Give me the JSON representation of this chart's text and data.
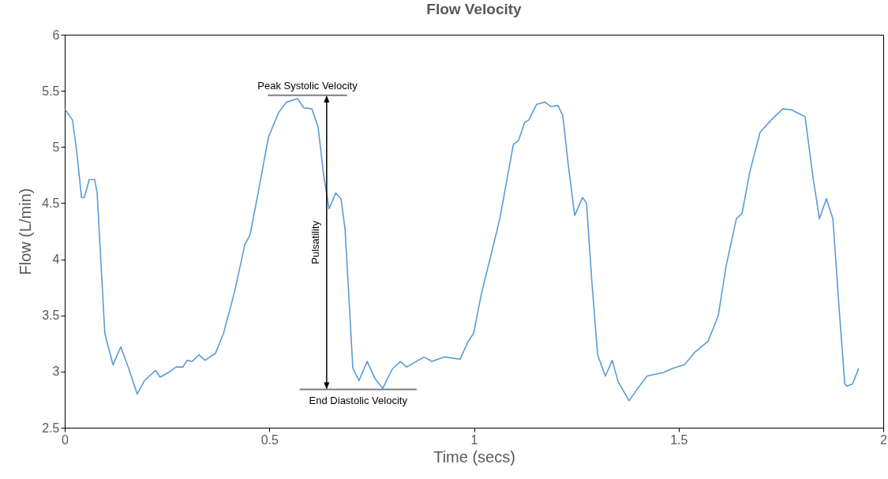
{
  "chart_data": {
    "type": "line",
    "title": "Flow Velocity",
    "xlabel": "Time (secs)",
    "ylabel": "Flow (L/min)",
    "xlim": [
      0,
      2
    ],
    "xticks": [
      0,
      0.5,
      1,
      1.5,
      2
    ],
    "ylim": [
      2.5,
      6
    ],
    "yticks": [
      2.5,
      3,
      3.5,
      4,
      4.5,
      5,
      5.5,
      6
    ],
    "grid": false,
    "marker": "none",
    "line_style": "solid",
    "x": [
      0,
      0.019,
      0.029,
      0.041,
      0.048,
      0.06,
      0.073,
      0.079,
      0.098,
      0.118,
      0.137,
      0.156,
      0.177,
      0.195,
      0.222,
      0.233,
      0.253,
      0.272,
      0.289,
      0.299,
      0.311,
      0.328,
      0.343,
      0.363,
      0.368,
      0.388,
      0.415,
      0.44,
      0.453,
      0.473,
      0.498,
      0.523,
      0.542,
      0.569,
      0.584,
      0.604,
      0.619,
      0.633,
      0.646,
      0.662,
      0.675,
      0.685,
      0.704,
      0.719,
      0.739,
      0.758,
      0.777,
      0.8,
      0.82,
      0.835,
      0.878,
      0.897,
      0.928,
      0.966,
      0.986,
      0.999,
      1.018,
      1.043,
      1.063,
      1.076,
      1.096,
      1.109,
      1.124,
      1.134,
      1.153,
      1.173,
      1.188,
      1.205,
      1.217,
      1.23,
      1.246,
      1.265,
      1.275,
      1.288,
      1.302,
      1.321,
      1.338,
      1.352,
      1.379,
      1.398,
      1.423,
      1.462,
      1.487,
      1.514,
      1.539,
      1.572,
      1.597,
      1.616,
      1.641,
      1.655,
      1.674,
      1.699,
      1.726,
      1.755,
      1.776,
      1.809,
      1.828,
      1.844,
      1.861,
      1.877,
      1.892,
      1.906,
      1.911,
      1.925,
      1.94
    ],
    "series": [
      {
        "color": "#5b9bd5",
        "values": [
          5.34,
          5.24,
          4.97,
          4.55,
          4.55,
          4.71,
          4.71,
          4.6,
          3.34,
          3.06,
          3.22,
          3.03,
          2.8,
          2.92,
          3.01,
          2.95,
          2.99,
          3.04,
          3.04,
          3.1,
          3.09,
          3.15,
          3.1,
          3.15,
          3.16,
          3.34,
          3.71,
          4.13,
          4.22,
          4.6,
          5.09,
          5.31,
          5.4,
          5.43,
          5.35,
          5.34,
          5.18,
          4.74,
          4.45,
          4.59,
          4.54,
          4.27,
          3.03,
          2.92,
          3.09,
          2.94,
          2.85,
          3.02,
          3.09,
          3.04,
          3.13,
          3.09,
          3.13,
          3.11,
          3.27,
          3.34,
          3.69,
          4.06,
          4.36,
          4.62,
          5.02,
          5.06,
          5.22,
          5.24,
          5.38,
          5.4,
          5.36,
          5.37,
          5.28,
          4.85,
          4.39,
          4.55,
          4.5,
          3.8,
          3.15,
          2.96,
          3.1,
          2.91,
          2.74,
          2.84,
          2.96,
          2.99,
          3.03,
          3.06,
          3.17,
          3.27,
          3.5,
          3.94,
          4.36,
          4.41,
          4.78,
          5.13,
          5.24,
          5.34,
          5.33,
          5.27,
          4.74,
          4.36,
          4.54,
          4.36,
          3.57,
          2.89,
          2.87,
          2.89,
          3.03
        ]
      }
    ],
    "ref_lines": [
      {
        "axis": "y",
        "value": 5.46,
        "label": "Peak Systolic Velocity",
        "color": "#7f7f7f"
      },
      {
        "axis": "y",
        "value": 2.84,
        "label": "End Diastolic Velocity",
        "color": "#7f7f7f"
      }
    ],
    "annotations": [
      "Pulsatility"
    ]
  }
}
